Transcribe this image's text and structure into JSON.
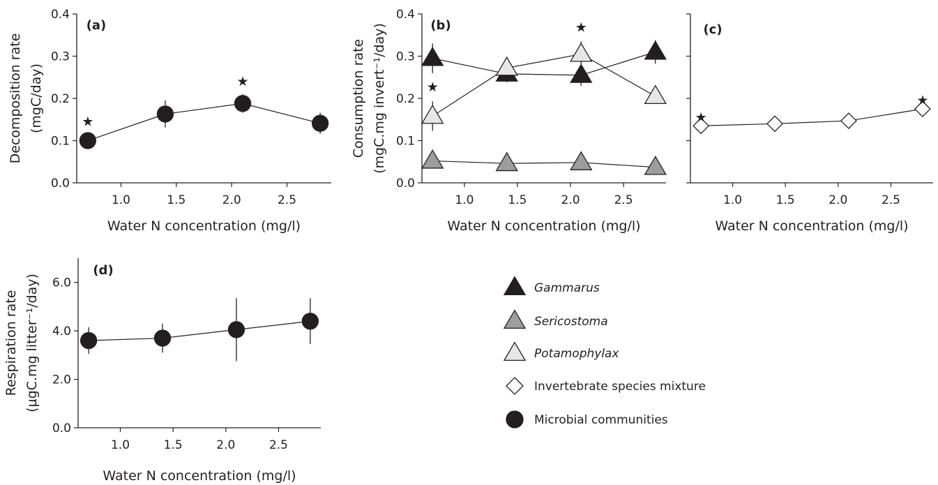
{
  "colors": {
    "Gammarus": "#231f20",
    "Sericostoma": "#9d9d9d",
    "Potamophylax": "#e6e6e6",
    "Invertebrate species mixture": "#ffffff",
    "Microbial communities": "#231f20"
  },
  "legend": {
    "entries": [
      {
        "label": "Gammarus",
        "marker": "triangle",
        "italic": true
      },
      {
        "label": "Sericostoma",
        "marker": "triangle",
        "italic": true
      },
      {
        "label": "Potamophylax",
        "marker": "triangle",
        "italic": true
      },
      {
        "label": "Invertebrate species mixture",
        "marker": "diamond",
        "italic": false
      },
      {
        "label": "Microbial communities",
        "marker": "circle",
        "italic": false
      }
    ]
  },
  "chart_data": [
    {
      "panel": "(a)",
      "type": "line",
      "xlabel": "Water N concentration (mg/l)",
      "ylabel": [
        "Decomposition rate",
        "(mgC/day)"
      ],
      "xlim": [
        0.6,
        2.9
      ],
      "ylim": [
        0.0,
        0.4
      ],
      "xticks": [
        "1.0",
        "1.5",
        "2.0",
        "2.5"
      ],
      "yticks": [
        "0.0",
        "0.1",
        "0.2",
        "0.3",
        "0.4"
      ],
      "series": [
        {
          "key": "Microbial communities",
          "marker": "circle",
          "x": [
            0.7,
            1.4,
            2.1,
            2.8
          ],
          "y": [
            0.1,
            0.163,
            0.188,
            0.141
          ],
          "err": [
            0.015,
            0.032,
            0.022,
            0.025
          ],
          "stars": [
            true,
            false,
            true,
            false
          ]
        }
      ]
    },
    {
      "panel": "(b)",
      "type": "line",
      "xlabel": "Water N concentration (mg/l)",
      "ylabel": [
        "Consumption rate",
        "(mgC.mg invert⁻¹/day)"
      ],
      "xlim": [
        0.6,
        2.9
      ],
      "ylim": [
        0.0,
        0.4
      ],
      "xticks": [
        "1.0",
        "1.5",
        "2.0",
        "2.5"
      ],
      "yticks": [
        "0.0",
        "0.1",
        "0.2",
        "0.3",
        "0.4"
      ],
      "series": [
        {
          "key": "Gammarus",
          "marker": "triangle",
          "x": [
            0.7,
            1.4,
            2.1,
            2.8
          ],
          "y": [
            0.295,
            0.258,
            0.255,
            0.31
          ],
          "err": [
            0.035,
            0.02,
            0.025,
            0.028
          ],
          "stars": [
            false,
            false,
            false,
            false
          ]
        },
        {
          "key": "Sericostoma",
          "marker": "triangle",
          "x": [
            0.7,
            1.4,
            2.1,
            2.8
          ],
          "y": [
            0.052,
            0.046,
            0.048,
            0.037
          ],
          "err": [
            0.008,
            0.006,
            0.007,
            0.006
          ],
          "stars": [
            false,
            false,
            false,
            false
          ]
        },
        {
          "key": "Potamophylax",
          "marker": "triangle",
          "x": [
            0.7,
            1.4,
            2.1,
            2.8
          ],
          "y": [
            0.158,
            0.272,
            0.305,
            0.205
          ],
          "err": [
            0.035,
            0.02,
            0.03,
            0.015
          ],
          "stars": [
            true,
            false,
            true,
            false
          ]
        }
      ]
    },
    {
      "panel": "(c)",
      "type": "line",
      "xlabel": "Water N concentration (mg/l)",
      "ylabel": [],
      "xlim": [
        0.6,
        2.9
      ],
      "ylim": [
        0.0,
        0.4
      ],
      "xticks": [
        "1.0",
        "1.5",
        "2.0",
        "2.5"
      ],
      "yticks": [],
      "series": [
        {
          "key": "Invertebrate species mixture",
          "marker": "diamond",
          "x": [
            0.7,
            1.4,
            2.1,
            2.8
          ],
          "y": [
            0.135,
            0.14,
            0.147,
            0.175
          ],
          "err": [
            0,
            0,
            0,
            0
          ],
          "stars": [
            true,
            false,
            false,
            true
          ]
        }
      ]
    },
    {
      "panel": "(d)",
      "type": "line",
      "xlabel": "Water N concentration (mg/l)",
      "ylabel": [
        "Respiration rate",
        "(µgC.mg litter⁻¹/day)"
      ],
      "xlim": [
        0.6,
        2.9
      ],
      "ylim": [
        0.0,
        7.0
      ],
      "xticks": [
        "1.0",
        "1.5",
        "2.0",
        "2.5"
      ],
      "yticks": [
        "0.0",
        "2.0",
        "4.0",
        "6.0"
      ],
      "series": [
        {
          "key": "Microbial communities",
          "marker": "circle",
          "x": [
            0.7,
            1.4,
            2.1,
            2.8
          ],
          "y": [
            3.6,
            3.7,
            4.05,
            4.4
          ],
          "err": [
            0.55,
            0.6,
            1.3,
            0.95
          ],
          "stars": [
            false,
            false,
            false,
            false
          ]
        }
      ]
    }
  ]
}
